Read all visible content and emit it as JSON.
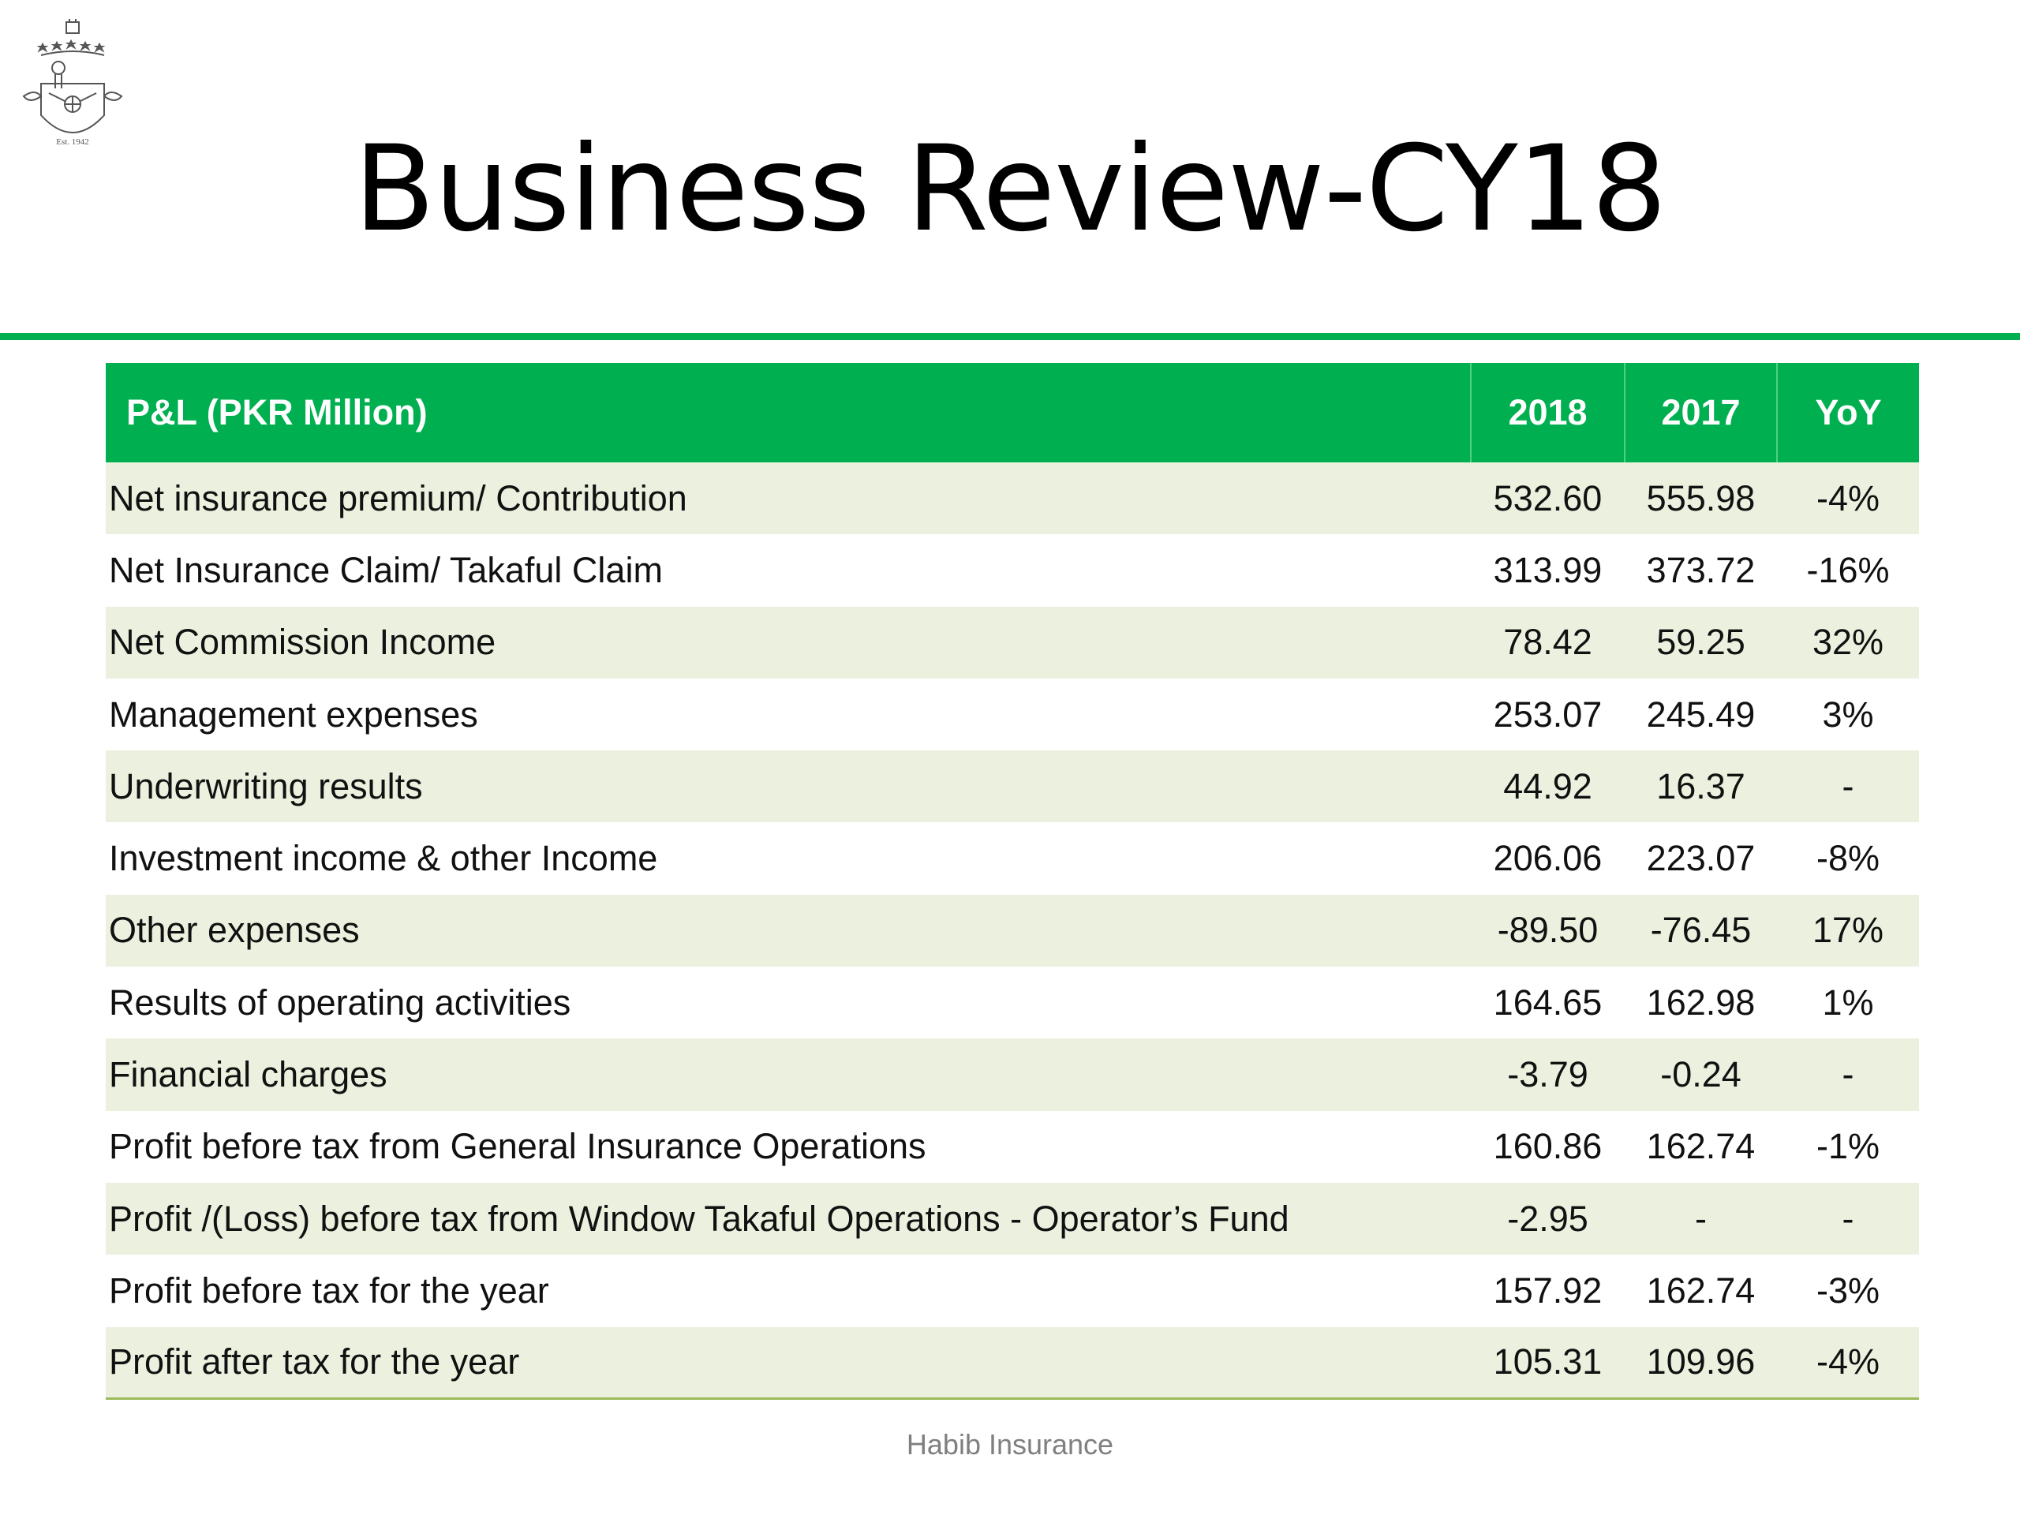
{
  "logo": {
    "icon": "habib-insurance-crest-icon",
    "caption": "Est. 1942"
  },
  "title": "Business Review-CY18",
  "table": {
    "headers": {
      "item": "P&L (PKR Million)",
      "y1": "2018",
      "y2": "2017",
      "yoy": "YoY"
    },
    "rows": [
      {
        "label": "Net insurance premium/ Contribution",
        "y2018": "532.60",
        "y2017": "555.98",
        "yoy": "-4%"
      },
      {
        "label": "Net Insurance Claim/ Takaful Claim",
        "y2018": "313.99",
        "y2017": "373.72",
        "yoy": "-16%"
      },
      {
        "label": "Net Commission Income",
        "y2018": "78.42",
        "y2017": "59.25",
        "yoy": "32%"
      },
      {
        "label": "Management expenses",
        "y2018": "253.07",
        "y2017": "245.49",
        "yoy": "3%"
      },
      {
        "label": "Underwriting results",
        "y2018": "44.92",
        "y2017": "16.37",
        "yoy": "-"
      },
      {
        "label": "Investment income & other Income",
        "y2018": "206.06",
        "y2017": "223.07",
        "yoy": "-8%"
      },
      {
        "label": "Other expenses",
        "y2018": "-89.50",
        "y2017": "-76.45",
        "yoy": "17%"
      },
      {
        "label": "Results of operating activities",
        "y2018": "164.65",
        "y2017": "162.98",
        "yoy": "1%"
      },
      {
        "label": "Financial charges",
        "y2018": "-3.79",
        "y2017": "-0.24",
        "yoy": "-"
      },
      {
        "label": "Profit before tax from General Insurance Operations",
        "y2018": "160.86",
        "y2017": "162.74",
        "yoy": "-1%"
      },
      {
        "label": "Profit /(Loss) before tax from Window Takaful Operations - Operator’s Fund",
        "y2018": "-2.95",
        "y2017": "-",
        "yoy": "-"
      },
      {
        "label": "Profit before tax for the year",
        "y2018": "157.92",
        "y2017": "162.74",
        "yoy": "-3%"
      },
      {
        "label": "Profit after tax for the year",
        "y2018": "105.31",
        "y2017": "109.96",
        "yoy": "-4%"
      }
    ]
  },
  "footer": "Habib Insurance",
  "colors": {
    "accent": "#00b050",
    "row_band": "#ebf1de",
    "footer_text": "#7f7f7f"
  }
}
